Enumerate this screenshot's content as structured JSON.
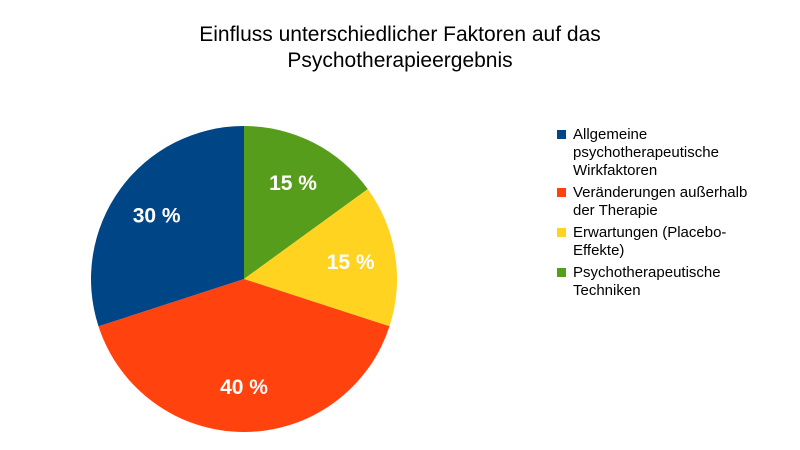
{
  "chart_data": {
    "type": "pie",
    "title": [
      "Einfluss unterschiedlicher Faktoren auf das",
      "Psychotherapieergebnis"
    ],
    "legend_position": "right",
    "slices": [
      {
        "name": [
          "Psychotherapeutische",
          "Techniken"
        ],
        "value": 15,
        "label": "15 %",
        "color": "#579d1c"
      },
      {
        "name": [
          "Erwartungen (Placebo-",
          "Effekte)"
        ],
        "value": 15,
        "label": "15 %",
        "color": "#ffd320"
      },
      {
        "name": [
          "Veränderungen außerhalb",
          "der Therapie"
        ],
        "value": 40,
        "label": "40 %",
        "color": "#ff420e"
      },
      {
        "name": [
          "Allgemeine",
          "psychotherapeutische",
          "Wirkfaktoren"
        ],
        "value": 30,
        "label": "30 %",
        "color": "#004586"
      }
    ],
    "legend_order": [
      3,
      2,
      1,
      0
    ]
  }
}
